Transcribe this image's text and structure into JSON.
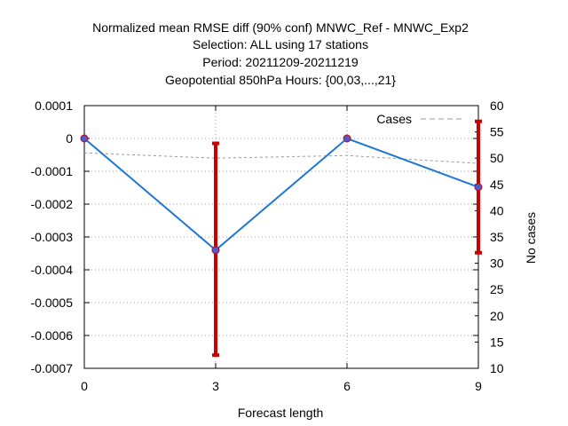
{
  "chart_data": {
    "type": "line",
    "title": [
      "Normalized mean RMSE diff (90% conf) MNWC_Ref - MNWC_Exp2",
      "Selection: ALL using    17 stations",
      "Period: 20211209-20211219",
      "Geopotential 850hPa   Hours: {00,03,...,21}"
    ],
    "xlabel": "Forecast length",
    "ylabel": "",
    "y2label": "No cases",
    "x_ticks": [
      0,
      3,
      6,
      9
    ],
    "y_ticks": [
      "0.0001",
      "0",
      "-0.0001",
      "-0.0002",
      "-0.0003",
      "-0.0004",
      "-0.0005",
      "-0.0006",
      "-0.0007"
    ],
    "y2_ticks": [
      "60",
      "55",
      "50",
      "45",
      "40",
      "35",
      "30",
      "25",
      "20",
      "15",
      "10"
    ],
    "xlim": [
      0,
      9
    ],
    "ylim": [
      -0.0007,
      0.0001
    ],
    "y2lim": [
      10,
      60
    ],
    "grid": true,
    "legend": {
      "position": "top-right",
      "entries": [
        "Cases"
      ]
    },
    "series": [
      {
        "x": [
          0,
          3,
          6,
          9
        ],
        "values": [
          0,
          -0.00034,
          0,
          -0.000148
        ],
        "error_low": [
          0,
          -0.00066,
          0,
          -0.000348
        ],
        "error_high": [
          0,
          -1.5e-05,
          0,
          5.2e-05
        ],
        "color": "#1f77d4",
        "marker_color": "#4a5bd0",
        "error_color": "#cc0000",
        "axis": "left"
      },
      {
        "name": "Cases",
        "x": [
          0,
          3,
          6,
          9
        ],
        "values": [
          51,
          50,
          50.5,
          49
        ],
        "color": "#999999",
        "dash": true,
        "axis": "right"
      }
    ]
  }
}
